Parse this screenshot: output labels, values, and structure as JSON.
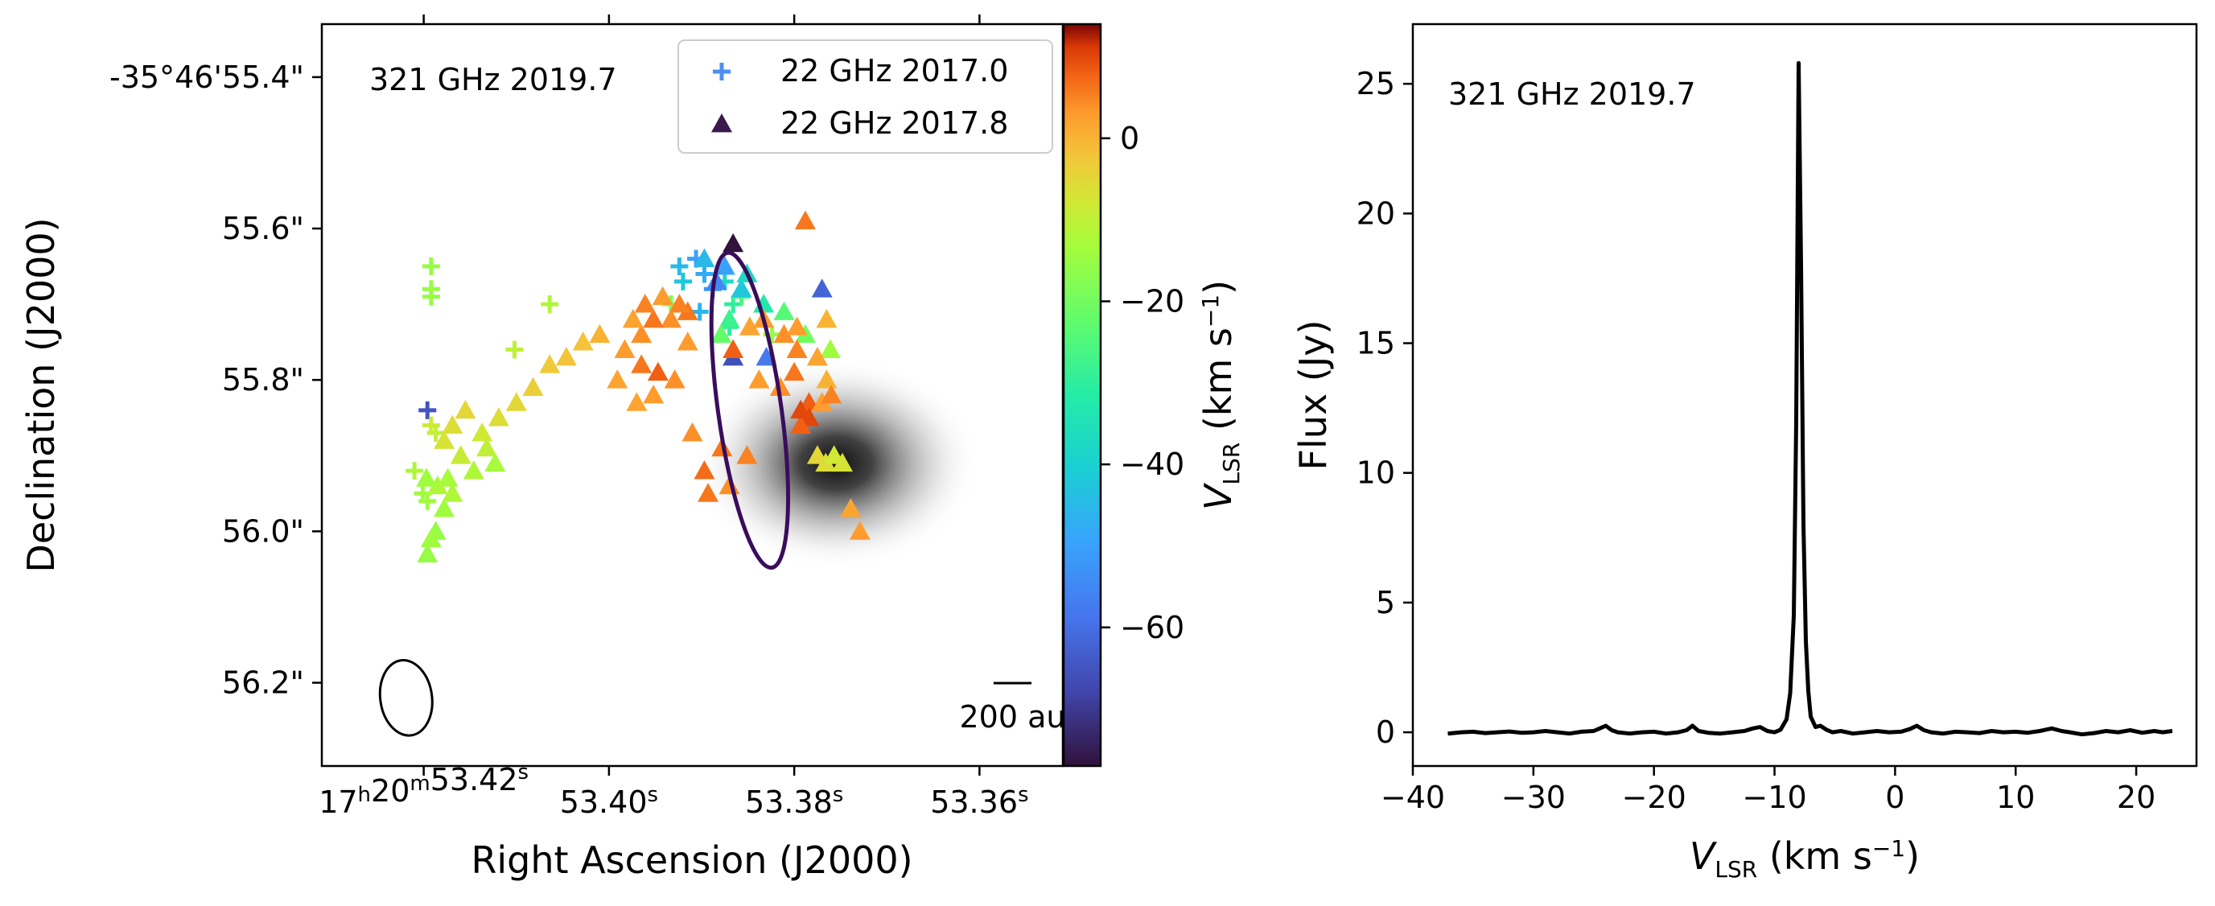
{
  "chart_data": [
    {
      "type": "scatter",
      "panel": "left",
      "title": "",
      "annotation": "321 GHz 2019.7",
      "xlabel": "Right Ascension (J2000)",
      "ylabel": "Declination (J2000)",
      "xlim_s": [
        53.431,
        53.351
      ],
      "ylim_arcsec": [
        55.33,
        56.31
      ],
      "x_ticks": [
        {
          "value": 53.42,
          "label": "17h20m53.42s"
        },
        {
          "value": 53.4,
          "label": "53.40s"
        },
        {
          "value": 53.38,
          "label": "53.38s"
        },
        {
          "value": 53.36,
          "label": "53.36s"
        }
      ],
      "y_ticks": [
        {
          "value": 55.4,
          "label": "-35°46'55.4\""
        },
        {
          "value": 55.6,
          "label": "55.6\""
        },
        {
          "value": 55.8,
          "label": "55.8\""
        },
        {
          "value": 56.0,
          "label": "56.0\""
        },
        {
          "value": 56.2,
          "label": "56.2\""
        }
      ],
      "legend": {
        "position": "top-right",
        "entries": [
          {
            "label": "22 GHz 2017.0",
            "marker": "plus",
            "color": "#4a90f0"
          },
          {
            "label": "22 GHz 2017.8",
            "marker": "triangle",
            "color": "#3a1a4d"
          }
        ]
      },
      "colorbar": {
        "label": "V_LSR (km s^-1)",
        "label_main": "V",
        "label_sub": "LSR",
        "label_units": " (km s",
        "label_exp": "−1",
        "label_close": ")",
        "range": [
          -77,
          14
        ],
        "ticks": [
          {
            "value": 0,
            "label": "0"
          },
          {
            "value": -20,
            "label": "−20"
          },
          {
            "value": -40,
            "label": "−40"
          },
          {
            "value": -60,
            "label": "−60"
          }
        ],
        "colormap": "turbo"
      },
      "scale_bar": {
        "label": "200 au",
        "length_arcsec": 0.05
      },
      "beam": {
        "ra": 53.4219,
        "dec": 56.22,
        "width_s": 0.00558,
        "height_arcsec": 0.1
      },
      "contour_ellipse": {
        "ra": 53.3848,
        "dec": 55.84,
        "width_s": 0.00683,
        "height_arcsec": 0.42,
        "rotation_deg": -8,
        "color": "#3a0d5c"
      },
      "continuum_blob": {
        "ra": 53.3755,
        "dec": 55.91,
        "peak": 1.0
      },
      "series": [
        {
          "name": "22 GHz 2017.0",
          "marker": "plus",
          "points": [
            {
              "ra": 53.4192,
              "dec": 55.65,
              "v": -15
            },
            {
              "ra": 53.4192,
              "dec": 55.68,
              "v": -15
            },
            {
              "ra": 53.4192,
              "dec": 55.69,
              "v": -15
            },
            {
              "ra": 53.4196,
              "dec": 55.84,
              "v": -65
            },
            {
              "ra": 53.4192,
              "dec": 55.86,
              "v": -8
            },
            {
              "ra": 53.4187,
              "dec": 55.87,
              "v": -10
            },
            {
              "ra": 53.421,
              "dec": 55.92,
              "v": -12
            },
            {
              "ra": 53.4201,
              "dec": 55.95,
              "v": -14
            },
            {
              "ra": 53.4196,
              "dec": 55.96,
              "v": -14
            },
            {
              "ra": 53.4102,
              "dec": 55.76,
              "v": -10
            },
            {
              "ra": 53.4064,
              "dec": 55.7,
              "v": -12
            },
            {
              "ra": 53.3933,
              "dec": 55.7,
              "v": -18
            },
            {
              "ra": 53.3924,
              "dec": 55.65,
              "v": -45
            },
            {
              "ra": 53.3906,
              "dec": 55.64,
              "v": -50
            },
            {
              "ra": 53.3897,
              "dec": 55.66,
              "v": -48
            },
            {
              "ra": 53.392,
              "dec": 55.67,
              "v": -42
            },
            {
              "ra": 53.3888,
              "dec": 55.68,
              "v": -52
            },
            {
              "ra": 53.3875,
              "dec": 55.67,
              "v": -38
            },
            {
              "ra": 53.3866,
              "dec": 55.7,
              "v": -30
            },
            {
              "ra": 53.3857,
              "dec": 55.69,
              "v": -25
            },
            {
              "ra": 53.3902,
              "dec": 55.71,
              "v": -46
            },
            {
              "ra": 53.387,
              "dec": 55.73,
              "v": -30
            },
            {
              "ra": 53.3824,
              "dec": 55.74,
              "v": -15
            }
          ]
        },
        {
          "name": "22 GHz 2017.8",
          "marker": "triangle",
          "points": [
            {
              "ra": 53.3788,
              "dec": 55.59,
              "v": 6
            },
            {
              "ra": 53.3866,
              "dec": 55.62,
              "v": -78
            },
            {
              "ra": 53.3897,
              "dec": 55.64,
              "v": -45
            },
            {
              "ra": 53.3875,
              "dec": 55.65,
              "v": -50
            },
            {
              "ra": 53.3884,
              "dec": 55.67,
              "v": -55
            },
            {
              "ra": 53.3857,
              "dec": 55.68,
              "v": -42
            },
            {
              "ra": 53.3851,
              "dec": 55.66,
              "v": -38
            },
            {
              "ra": 53.3833,
              "dec": 55.7,
              "v": -32
            },
            {
              "ra": 53.377,
              "dec": 55.68,
              "v": -62
            },
            {
              "ra": 53.387,
              "dec": 55.72,
              "v": -28
            },
            {
              "ra": 53.3811,
              "dec": 55.71,
              "v": -24
            },
            {
              "ra": 53.3879,
              "dec": 55.74,
              "v": -22
            },
            {
              "ra": 53.3788,
              "dec": 55.74,
              "v": -20
            },
            {
              "ra": 53.3866,
              "dec": 55.77,
              "v": -66
            },
            {
              "ra": 53.383,
              "dec": 55.77,
              "v": -58
            },
            {
              "ra": 53.3866,
              "dec": 55.76,
              "v": 8
            },
            {
              "ra": 53.3761,
              "dec": 55.76,
              "v": -14
            },
            {
              "ra": 53.3848,
              "dec": 55.73,
              "v": 2
            },
            {
              "ra": 53.3833,
              "dec": 55.72,
              "v": 3
            },
            {
              "ra": 53.3811,
              "dec": 55.74,
              "v": 4
            },
            {
              "ra": 53.3797,
              "dec": 55.73,
              "v": 3
            },
            {
              "ra": 53.3797,
              "dec": 55.76,
              "v": 5
            },
            {
              "ra": 53.3775,
              "dec": 55.77,
              "v": 2
            },
            {
              "ra": 53.3765,
              "dec": 55.72,
              "v": 0
            },
            {
              "ra": 53.3765,
              "dec": 55.8,
              "v": 0
            },
            {
              "ra": 53.38,
              "dec": 55.79,
              "v": 6
            },
            {
              "ra": 53.3784,
              "dec": 55.83,
              "v": 8
            },
            {
              "ra": 53.3784,
              "dec": 55.85,
              "v": 10
            },
            {
              "ra": 53.3793,
              "dec": 55.86,
              "v": 8
            },
            {
              "ra": 53.3793,
              "dec": 55.84,
              "v": 10
            },
            {
              "ra": 53.377,
              "dec": 55.83,
              "v": 3
            },
            {
              "ra": 53.376,
              "dec": 55.82,
              "v": 5
            },
            {
              "ra": 53.3815,
              "dec": 55.81,
              "v": 4
            },
            {
              "ra": 53.3838,
              "dec": 55.8,
              "v": 3
            },
            {
              "ra": 53.3915,
              "dec": 55.71,
              "v": 6
            },
            {
              "ra": 53.3924,
              "dec": 55.7,
              "v": 5
            },
            {
              "ra": 53.3915,
              "dec": 55.75,
              "v": 3
            },
            {
              "ra": 53.3933,
              "dec": 55.72,
              "v": 4
            },
            {
              "ra": 53.3942,
              "dec": 55.69,
              "v": 3
            },
            {
              "ra": 53.3952,
              "dec": 55.72,
              "v": 6
            },
            {
              "ra": 53.3961,
              "dec": 55.7,
              "v": 5
            },
            {
              "ra": 53.3965,
              "dec": 55.74,
              "v": 4
            },
            {
              "ra": 53.3974,
              "dec": 55.72,
              "v": 2
            },
            {
              "ra": 53.3983,
              "dec": 55.76,
              "v": 3
            },
            {
              "ra": 53.3965,
              "dec": 55.78,
              "v": 6
            },
            {
              "ra": 53.3947,
              "dec": 55.79,
              "v": 8
            },
            {
              "ra": 53.3929,
              "dec": 55.8,
              "v": 4
            },
            {
              "ra": 53.3952,
              "dec": 55.82,
              "v": 3
            },
            {
              "ra": 53.397,
              "dec": 55.83,
              "v": 2
            },
            {
              "ra": 53.3991,
              "dec": 55.8,
              "v": 2
            },
            {
              "ra": 53.401,
              "dec": 55.74,
              "v": 0
            },
            {
              "ra": 53.4028,
              "dec": 55.75,
              "v": -2
            },
            {
              "ra": 53.4046,
              "dec": 55.77,
              "v": -2
            },
            {
              "ra": 53.4064,
              "dec": 55.78,
              "v": -3
            },
            {
              "ra": 53.4082,
              "dec": 55.81,
              "v": -4
            },
            {
              "ra": 53.41,
              "dec": 55.83,
              "v": -5
            },
            {
              "ra": 53.4119,
              "dec": 55.85,
              "v": -6
            },
            {
              "ra": 53.4137,
              "dec": 55.87,
              "v": -8
            },
            {
              "ra": 53.4155,
              "dec": 55.84,
              "v": -5
            },
            {
              "ra": 53.4169,
              "dec": 55.86,
              "v": -6
            },
            {
              "ra": 53.4178,
              "dec": 55.88,
              "v": -7
            },
            {
              "ra": 53.416,
              "dec": 55.9,
              "v": -9
            },
            {
              "ra": 53.4146,
              "dec": 55.92,
              "v": -12
            },
            {
              "ra": 53.4132,
              "dec": 55.89,
              "v": -10
            },
            {
              "ra": 53.4123,
              "dec": 55.91,
              "v": -13
            },
            {
              "ra": 53.4185,
              "dec": 55.94,
              "v": -12
            },
            {
              "ra": 53.4178,
              "dec": 55.97,
              "v": -14
            },
            {
              "ra": 53.4187,
              "dec": 56.0,
              "v": -15
            },
            {
              "ra": 53.4196,
              "dec": 56.03,
              "v": -15
            },
            {
              "ra": 53.4197,
              "dec": 55.93,
              "v": -14
            },
            {
              "ra": 53.4192,
              "dec": 56.01,
              "v": -14
            },
            {
              "ra": 53.4174,
              "dec": 55.93,
              "v": -13
            },
            {
              "ra": 53.4169,
              "dec": 55.95,
              "v": -12
            },
            {
              "ra": 53.391,
              "dec": 55.87,
              "v": 4
            },
            {
              "ra": 53.3878,
              "dec": 55.89,
              "v": 6
            },
            {
              "ra": 53.3897,
              "dec": 55.92,
              "v": 7
            },
            {
              "ra": 53.387,
              "dec": 55.94,
              "v": 4
            },
            {
              "ra": 53.3893,
              "dec": 55.95,
              "v": 6
            },
            {
              "ra": 53.3851,
              "dec": 55.9,
              "v": 5
            },
            {
              "ra": 53.3775,
              "dec": 55.9,
              "v": -5
            },
            {
              "ra": 53.3766,
              "dec": 55.91,
              "v": -6
            },
            {
              "ra": 53.3757,
              "dec": 55.9,
              "v": -8
            },
            {
              "ra": 53.3748,
              "dec": 55.91,
              "v": -7
            },
            {
              "ra": 53.3739,
              "dec": 55.97,
              "v": 2
            },
            {
              "ra": 53.3729,
              "dec": 56.0,
              "v": 3
            }
          ]
        }
      ]
    },
    {
      "type": "line",
      "panel": "right",
      "title": "",
      "annotation": "321 GHz 2019.7",
      "xlabel": "V_LSR (km s^-1)",
      "xlabel_main": "V",
      "xlabel_sub": "LSR",
      "xlabel_units": " (km s",
      "xlabel_exp": "−1",
      "xlabel_close": ")",
      "ylabel": "Flux (Jy)",
      "xlim": [
        -40,
        25
      ],
      "ylim": [
        -1.3,
        27.3
      ],
      "x_ticks": [
        {
          "value": -40,
          "label": "−40"
        },
        {
          "value": -30,
          "label": "−30"
        },
        {
          "value": -20,
          "label": "−20"
        },
        {
          "value": -10,
          "label": "−10"
        },
        {
          "value": 0,
          "label": "0"
        },
        {
          "value": 10,
          "label": "10"
        },
        {
          "value": 20,
          "label": "20"
        }
      ],
      "y_ticks": [
        {
          "value": 0,
          "label": "0"
        },
        {
          "value": 5,
          "label": "5"
        },
        {
          "value": 10,
          "label": "10"
        },
        {
          "value": 15,
          "label": "15"
        },
        {
          "value": 20,
          "label": "20"
        },
        {
          "value": 25,
          "label": "25"
        }
      ],
      "series": [
        {
          "name": "spectrum",
          "color": "#000000",
          "x": [
            -37.1,
            -36,
            -35,
            -34,
            -33,
            -32,
            -31,
            -30,
            -29,
            -28,
            -27,
            -26,
            -25,
            -24.5,
            -24,
            -23.5,
            -23,
            -22,
            -21,
            -20,
            -19,
            -18,
            -17.3,
            -16.8,
            -16.3,
            -15.5,
            -14.5,
            -13.5,
            -12.5,
            -11.8,
            -11.2,
            -10.6,
            -10,
            -9.5,
            -9.0,
            -8.7,
            -8.4,
            -8.2,
            -8.0,
            -7.8,
            -7.6,
            -7.4,
            -7.2,
            -7.0,
            -6.6,
            -6.2,
            -5.7,
            -5.2,
            -4.5,
            -3.5,
            -2.5,
            -1.5,
            -0.5,
            0.5,
            1.2,
            1.8,
            2.4,
            3,
            4,
            5,
            6,
            7,
            8,
            9,
            10,
            11,
            12,
            13,
            13.8,
            14.5,
            15.5,
            16.5,
            17.5,
            18.5,
            19.5,
            20.5,
            21.5,
            22.2,
            23.0
          ],
          "y": [
            -0.05,
            0.0,
            0.02,
            -0.03,
            0.0,
            0.03,
            -0.02,
            0.0,
            0.05,
            0.0,
            -0.05,
            0.02,
            0.05,
            0.15,
            0.25,
            0.08,
            0.0,
            -0.05,
            0.0,
            0.02,
            -0.05,
            0.0,
            0.08,
            0.25,
            0.05,
            -0.02,
            -0.05,
            0.0,
            0.05,
            0.15,
            0.2,
            0.05,
            0.0,
            0.1,
            0.5,
            1.5,
            4.5,
            12,
            25.8,
            18,
            8,
            3.5,
            1.6,
            0.6,
            0.2,
            0.25,
            0.1,
            0.0,
            0.05,
            -0.05,
            0.0,
            0.05,
            0.0,
            0.02,
            0.12,
            0.25,
            0.08,
            0.0,
            -0.05,
            0.02,
            0.0,
            -0.03,
            0.05,
            0.0,
            0.02,
            -0.02,
            0.05,
            0.15,
            0.05,
            0.0,
            -0.08,
            -0.03,
            0.05,
            0.0,
            0.08,
            -0.02,
            0.05,
            0.0,
            0.05
          ]
        }
      ]
    }
  ]
}
